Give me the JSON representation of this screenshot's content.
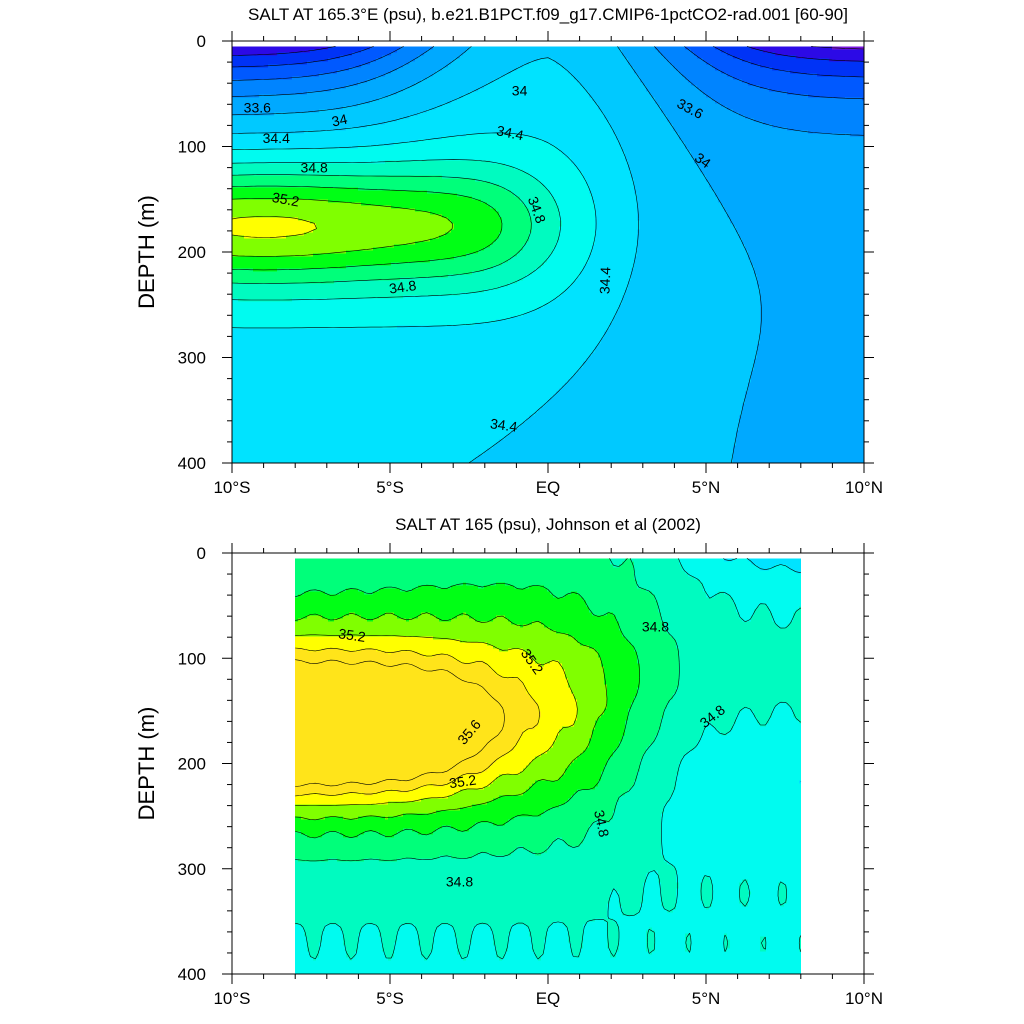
{
  "chart_data": [
    {
      "type": "contour",
      "title": "SALT AT 165.3°E (psu), b.e21.B1PCT.f09_g17.CMIP6-1pctCO2-rad.001 [60-90]",
      "xlabel": "",
      "ylabel": "DEPTH (m)",
      "x_unit": "degrees latitude (negative = S)",
      "xlim": [
        -10,
        10
      ],
      "ylim": [
        400,
        0
      ],
      "y_reversed": true,
      "x_ticks": [
        {
          "value": -10,
          "label": "10°S"
        },
        {
          "value": -5,
          "label": "5°S"
        },
        {
          "value": 0,
          "label": "EQ"
        },
        {
          "value": 5,
          "label": "5°N"
        },
        {
          "value": 10,
          "label": "10°N"
        }
      ],
      "y_ticks": [
        0,
        100,
        200,
        300,
        400
      ],
      "data_xrange": [
        -10,
        10
      ],
      "data_yrange": [
        5,
        400
      ],
      "contour_interval": 0.2,
      "levels": [
        33.2,
        33.4,
        33.6,
        33.8,
        34.0,
        34.2,
        34.4,
        34.6,
        34.8,
        35.0,
        35.2,
        35.4,
        35.6,
        35.8
      ],
      "fill_colors": [
        "#7a16dd",
        "#2c0ae6",
        "#0033f6",
        "#0059ff",
        "#0084ff",
        "#00a9ff",
        "#00c9ff",
        "#00e3ff",
        "#00fbf0",
        "#00fbc0",
        "#00ff7a",
        "#00ff15",
        "#80ff00",
        "#ffff00",
        "#ffe41a"
      ],
      "contour_labels": [
        {
          "text": "33.6",
          "x": -9.2,
          "y": 63,
          "angle": 0
        },
        {
          "text": "34",
          "x": -6.6,
          "y": 75,
          "angle": -12
        },
        {
          "text": "34.4",
          "x": -8.6,
          "y": 92,
          "angle": 0
        },
        {
          "text": "34.8",
          "x": -7.4,
          "y": 120,
          "angle": 0
        },
        {
          "text": "35.2",
          "x": -8.3,
          "y": 150,
          "angle": 10
        },
        {
          "text": "34",
          "x": -0.9,
          "y": 47,
          "angle": 0
        },
        {
          "text": "34.4",
          "x": -1.2,
          "y": 87,
          "angle": 12
        },
        {
          "text": "34.8",
          "x": -0.35,
          "y": 160,
          "angle": 70
        },
        {
          "text": "34.8",
          "x": -4.6,
          "y": 233,
          "angle": -8
        },
        {
          "text": "34.4",
          "x": 1.8,
          "y": 227,
          "angle": -88
        },
        {
          "text": "34.4",
          "x": -1.4,
          "y": 364,
          "angle": 8
        },
        {
          "text": "33.6",
          "x": 4.5,
          "y": 64,
          "angle": 28
        },
        {
          "text": "34",
          "x": 4.9,
          "y": 113,
          "angle": 35
        }
      ],
      "features": {
        "low_salinity_pools_surface": [
          {
            "x_range": [
              -10,
              -5.5
            ],
            "min_level": 33.2
          },
          {
            "x_range": [
              4,
              10
            ],
            "min_level": 33.2
          }
        ],
        "max_core": {
          "x": -8.5,
          "y": 175,
          "value_range": [
            35.2,
            35.4
          ]
        }
      }
    },
    {
      "type": "contour",
      "title": "SALT AT 165 (psu), Johnson et al (2002)",
      "xlabel": "",
      "ylabel": "DEPTH (m)",
      "x_unit": "degrees latitude (negative = S)",
      "xlim": [
        -10,
        10
      ],
      "ylim": [
        400,
        0
      ],
      "y_reversed": true,
      "x_ticks": [
        {
          "value": -10,
          "label": "10°S"
        },
        {
          "value": -5,
          "label": "5°S"
        },
        {
          "value": 0,
          "label": "EQ"
        },
        {
          "value": 5,
          "label": "5°N"
        },
        {
          "value": 10,
          "label": "10°N"
        }
      ],
      "y_ticks": [
        0,
        100,
        200,
        300,
        400
      ],
      "data_xrange": [
        -8,
        8
      ],
      "data_yrange": [
        5,
        400
      ],
      "contour_interval": 0.2,
      "levels": [
        34.2,
        34.4,
        34.6,
        34.8,
        35.0,
        35.2,
        35.4,
        35.6,
        35.8
      ],
      "fill_colors": [
        "#00c9ff",
        "#00e3ff",
        "#00fbf0",
        "#00fbc0",
        "#00ff7a",
        "#00ff15",
        "#80ff00",
        "#ffff00",
        "#ffe41a"
      ],
      "contour_labels": [
        {
          "text": "35.2",
          "x": -6.2,
          "y": 78,
          "angle": 8
        },
        {
          "text": "35.2",
          "x": -0.5,
          "y": 103,
          "angle": 55
        },
        {
          "text": "34.8",
          "x": 3.4,
          "y": 70,
          "angle": 0
        },
        {
          "text": "34.8",
          "x": 5.2,
          "y": 155,
          "angle": -38
        },
        {
          "text": "35.6",
          "x": -2.5,
          "y": 170,
          "angle": -50
        },
        {
          "text": "35.2",
          "x": -2.7,
          "y": 217,
          "angle": -8
        },
        {
          "text": "34.8",
          "x": 1.7,
          "y": 257,
          "angle": 78
        },
        {
          "text": "34.8",
          "x": -2.8,
          "y": 312,
          "angle": 0
        }
      ],
      "features": {
        "max_core": {
          "x": -6.5,
          "y": 168,
          "value_range": [
            35.6,
            35.8
          ]
        },
        "fresher_surface_northeast": {
          "x_range": [
            5.5,
            8
          ],
          "y_range": [
            5,
            50
          ],
          "value_range": [
            34.2,
            34.4
          ]
        }
      }
    }
  ]
}
